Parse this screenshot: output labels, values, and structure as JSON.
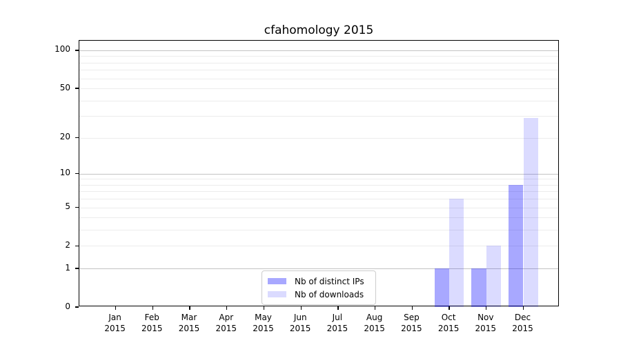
{
  "title": "cfahomology 2015",
  "legend": {
    "items": [
      {
        "label": "Nb of distinct IPs"
      },
      {
        "label": "Nb of downloads"
      }
    ]
  },
  "chart_data": {
    "type": "bar",
    "title": "cfahomology 2015",
    "categories": [
      "Jan 2015",
      "Feb 2015",
      "Mar 2015",
      "Apr 2015",
      "May 2015",
      "Jun 2015",
      "Jul 2015",
      "Aug 2015",
      "Sep 2015",
      "Oct 2015",
      "Nov 2015",
      "Dec 2015"
    ],
    "series": [
      {
        "name": "Nb of distinct IPs",
        "color": "rgba(0,0,255,0.34)",
        "values": [
          0,
          0,
          0,
          0,
          0,
          0,
          0,
          0,
          0,
          1,
          1,
          8
        ]
      },
      {
        "name": "Nb of downloads",
        "color": "rgba(0,0,255,0.14)",
        "values": [
          0,
          0,
          0,
          0,
          0,
          0,
          0,
          0,
          0,
          6,
          2,
          29
        ]
      }
    ],
    "xlabel": "",
    "ylabel": "",
    "yscale": "log10(1+y)",
    "ylim": [
      0,
      119
    ],
    "y_tick_labels": [
      0,
      1,
      2,
      5,
      10,
      20,
      50,
      100
    ],
    "y_major_gridlines": [
      1,
      10,
      100
    ],
    "y_minor_gridlines": [
      2,
      3,
      4,
      5,
      6,
      7,
      8,
      9,
      20,
      30,
      40,
      50,
      60,
      70,
      80,
      90
    ],
    "grid": true,
    "legend_position": "inside axes, bottom center"
  },
  "colors": {
    "bar_distinct_ips": "rgba(0,0,255,0.34)",
    "bar_downloads": "rgba(0,0,255,0.14)",
    "grid_minor": "#ececec",
    "grid_major": "#c3c3c3",
    "axis": "#000000",
    "legend_border": "#cccccc",
    "background": "#ffffff"
  }
}
